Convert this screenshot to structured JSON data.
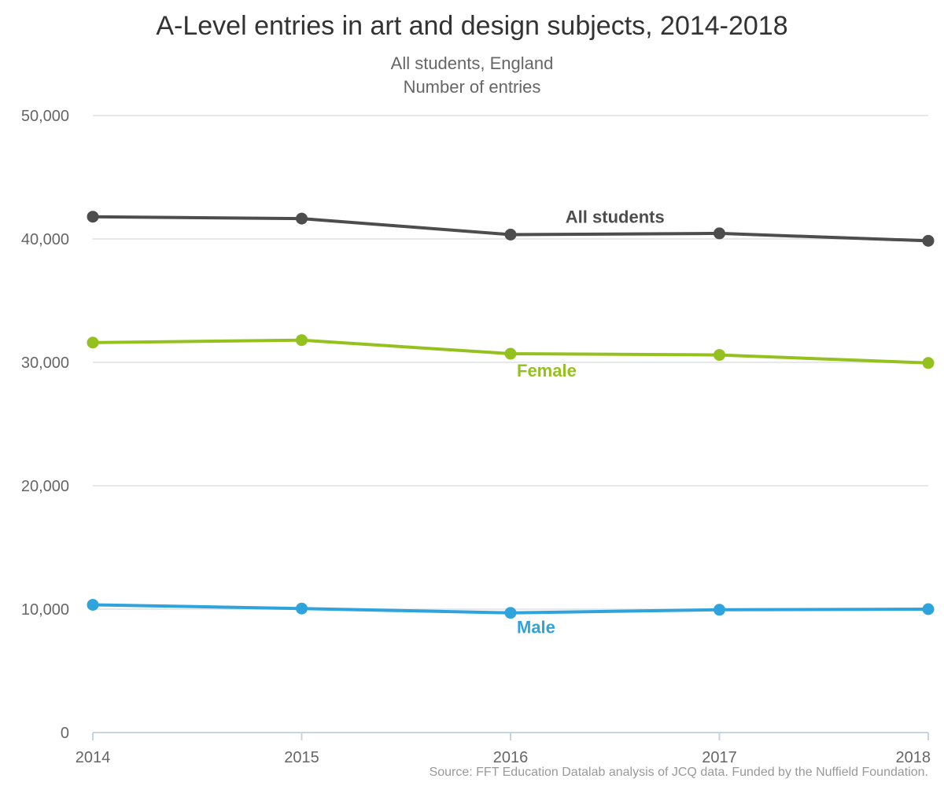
{
  "chart_data": {
    "type": "line",
    "title": "A-Level entries in art and design subjects, 2014-2018",
    "subtitle": [
      "All students, England",
      "Number of entries"
    ],
    "source": "Source: FFT Education Datalab analysis of JCQ data. Funded by the Nuffield Foundation.",
    "x": [
      2014,
      2015,
      2016,
      2017,
      2018
    ],
    "x_tick_labels": [
      "2014",
      "2015",
      "2016",
      "2017",
      "2018"
    ],
    "ylim": [
      0,
      50000
    ],
    "y_ticks": [
      0,
      10000,
      20000,
      30000,
      40000,
      50000
    ],
    "y_tick_labels": [
      "0",
      "10,000",
      "20,000",
      "30,000",
      "40,000",
      "50,000"
    ],
    "grid": true,
    "legend": "none",
    "series": [
      {
        "name": "All students",
        "key": "all",
        "color": "#4d4d4d",
        "values": [
          41800,
          41650,
          40350,
          40450,
          39850
        ],
        "label_anchor_index": 2,
        "label_position": "above"
      },
      {
        "name": "Female",
        "key": "female",
        "color": "#95c11f",
        "values": [
          31600,
          31800,
          30700,
          30600,
          29950
        ],
        "label_anchor_index": 2,
        "label_position": "below"
      },
      {
        "name": "Male",
        "key": "male",
        "color": "#2fa4dc",
        "values": [
          10350,
          10050,
          9700,
          9950,
          10000
        ],
        "label_anchor_index": 2,
        "label_position": "below"
      }
    ]
  }
}
